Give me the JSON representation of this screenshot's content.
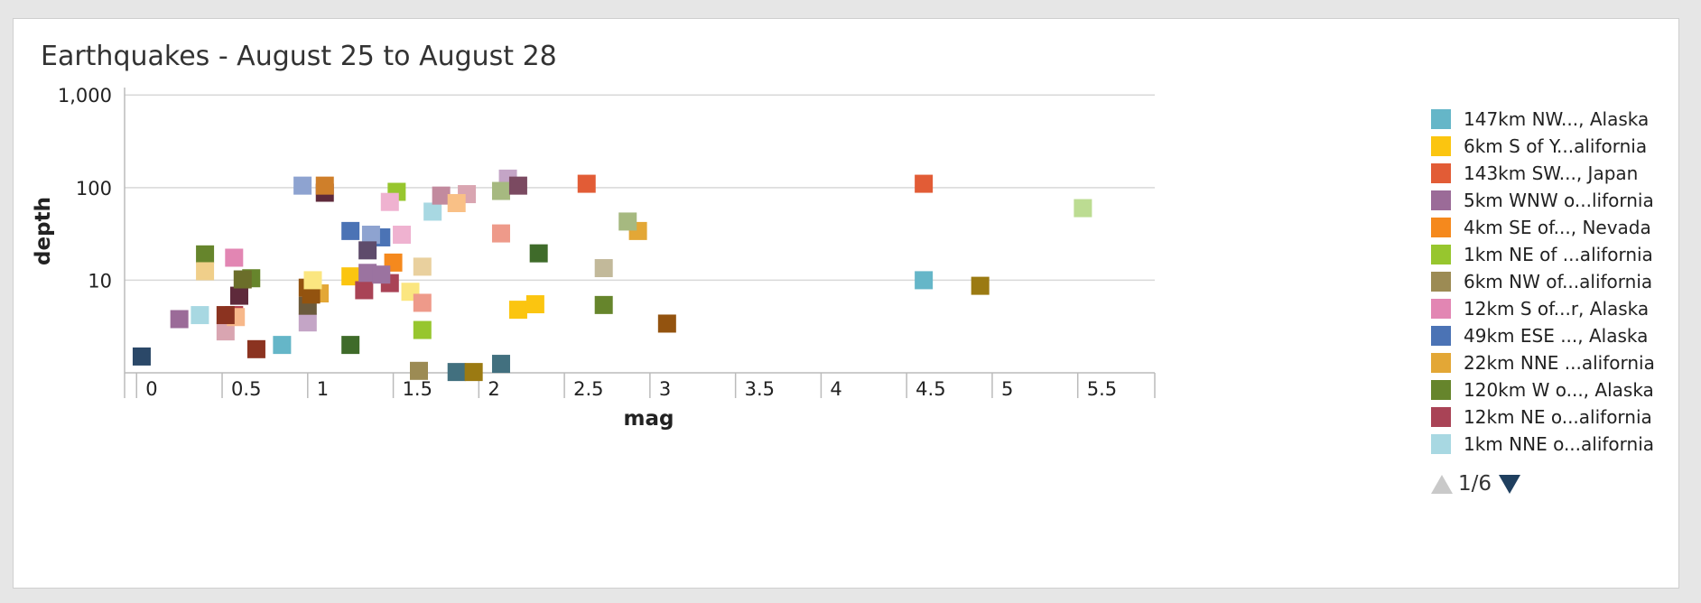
{
  "panel": {
    "title": "Earthquakes - August 25 to August 28"
  },
  "legend_pager": {
    "page": "1/6"
  },
  "chart_data": {
    "type": "scatter",
    "title": "Earthquakes - August 25 to August 28",
    "xlabel": "mag",
    "ylabel": "depth",
    "xlim": [
      -0.07,
      5.95
    ],
    "ylim": [
      1.0,
      1150
    ],
    "yscale": "log",
    "x_ticks": [
      "0",
      "0.5",
      "1",
      "1.5",
      "2",
      "2.5",
      "3",
      "3.5",
      "4",
      "4.5",
      "5",
      "5.5"
    ],
    "x_tick_values": [
      0,
      0.5,
      1,
      1.5,
      2,
      2.5,
      3,
      3.5,
      4,
      4.5,
      5,
      5.5
    ],
    "y_ticks": [
      "10",
      "100",
      "1,000"
    ],
    "y_tick_values": [
      10,
      100,
      1000
    ],
    "grid": true,
    "legend": "right",
    "series": [
      {
        "name": "147km NW..., Alaska",
        "color": "#65b6c8",
        "x": [
          0.85,
          4.6
        ],
        "y": [
          2.0,
          10.0
        ]
      },
      {
        "name": "6km S of Y...alifornia",
        "color": "#fbc510",
        "x": [
          1.25,
          2.23,
          2.33
        ],
        "y": [
          11.0,
          4.8,
          5.5
        ]
      },
      {
        "name": "143km SW..., Japan",
        "color": "#e25c36",
        "x": [
          2.63,
          4.6
        ],
        "y": [
          110,
          110
        ]
      },
      {
        "name": "5km WNW o...lifornia",
        "color": "#9b6b98",
        "x": [
          0.25
        ],
        "y": [
          3.8
        ]
      },
      {
        "name": "4km SE of..., Nevada",
        "color": "#f5891d",
        "x": [
          1.5
        ],
        "y": [
          15.5
        ]
      },
      {
        "name": "1km NE of ...alifornia",
        "color": "#97c62e",
        "x": [
          1.52,
          1.67
        ],
        "y": [
          90,
          2.9
        ]
      },
      {
        "name": "6km NW of...alifornia",
        "color": "#9c8b54",
        "x": [
          1.65
        ],
        "y": [
          1.05
        ]
      },
      {
        "name": "12km S of...r, Alaska",
        "color": "#e286b3",
        "x": [
          0.57
        ],
        "y": [
          17.5
        ]
      },
      {
        "name": "49km ESE ..., Alaska",
        "color": "#4b73b5",
        "x": [
          1.25,
          1.43
        ],
        "y": [
          34,
          29
        ]
      },
      {
        "name": "22km NNE ...alifornia",
        "color": "#e3a736",
        "x": [
          1.07,
          2.93
        ],
        "y": [
          7.2,
          34
        ]
      },
      {
        "name": "120km W o..., Alaska",
        "color": "#66852c",
        "x": [
          0.4,
          0.67,
          2.73
        ],
        "y": [
          19,
          10.5,
          5.4
        ]
      },
      {
        "name": "12km NE o...alifornia",
        "color": "#a94356",
        "x": [
          1.33,
          1.48
        ],
        "y": [
          7.8,
          9.3
        ]
      },
      {
        "name": "1km NNE o...alifornia",
        "color": "#a8d8e2",
        "x": [
          0.37,
          1.73
        ],
        "y": [
          4.2,
          55
        ]
      },
      {
        "color": "#f0cf8a",
        "x": [
          0.4
        ],
        "y": [
          12.5
        ]
      },
      {
        "color": "#2b4868",
        "x": [
          0.03
        ],
        "y": [
          1.5
        ]
      },
      {
        "color": "#b23c48",
        "x": [
          0.57
        ],
        "y": [
          4.2
        ]
      },
      {
        "color": "#d9a5b1",
        "x": [
          0.52,
          1.93
        ],
        "y": [
          2.8,
          85
        ]
      },
      {
        "color": "#5e2a3b",
        "x": [
          0.6,
          1.1
        ],
        "y": [
          6.8,
          88
        ]
      },
      {
        "color": "#f7b88a",
        "x": [
          0.58
        ],
        "y": [
          4.0
        ]
      },
      {
        "color": "#6b6e2a",
        "x": [
          0.62
        ],
        "y": [
          10.2
        ]
      },
      {
        "color": "#8b3320",
        "x": [
          0.52,
          0.7
        ],
        "y": [
          4.2,
          1.8
        ]
      },
      {
        "color": "#8ea3d0",
        "x": [
          0.97,
          1.37
        ],
        "y": [
          105,
          31
        ]
      },
      {
        "color": "#c4a5c6",
        "x": [
          1.0,
          2.17
        ],
        "y": [
          3.5,
          125
        ]
      },
      {
        "color": "#6b5a3c",
        "x": [
          1.0
        ],
        "y": [
          5.3
        ]
      },
      {
        "color": "#93530f",
        "x": [
          1.0,
          1.02,
          3.1
        ],
        "y": [
          8.3,
          7.0,
          3.4
        ]
      },
      {
        "color": "#fbe680",
        "x": [
          1.03,
          1.6
        ],
        "y": [
          10.0,
          7.5
        ]
      },
      {
        "color": "#cf7f2a",
        "x": [
          1.1
        ],
        "y": [
          105
        ]
      },
      {
        "color": "#3f6b2a",
        "x": [
          1.25,
          2.35
        ],
        "y": [
          2.0,
          19.5
        ]
      },
      {
        "color": "#5e4b6b",
        "x": [
          1.35
        ],
        "y": [
          21
        ]
      },
      {
        "color": "#9b73a0",
        "x": [
          1.35,
          1.43
        ],
        "y": [
          12.0,
          11.5
        ]
      },
      {
        "color": "#efb2d0",
        "x": [
          1.48,
          1.55
        ],
        "y": [
          70,
          31
        ]
      },
      {
        "color": "#e9d09e",
        "x": [
          1.67
        ],
        "y": [
          14.0
        ]
      },
      {
        "color": "#ee9a8a",
        "x": [
          1.67,
          2.13
        ],
        "y": [
          5.7,
          32
        ]
      },
      {
        "color": "#c28a9e",
        "x": [
          1.78
        ],
        "y": [
          82
        ]
      },
      {
        "color": "#f9c086",
        "x": [
          1.87
        ],
        "y": [
          68
        ]
      },
      {
        "color": "#42707f",
        "x": [
          1.87,
          2.13
        ],
        "y": [
          1.02,
          1.25
        ]
      },
      {
        "color": "#9b7a12",
        "x": [
          1.97,
          4.93
        ],
        "y": [
          1.02,
          8.7
        ]
      },
      {
        "color": "#a6b980",
        "x": [
          2.13,
          2.87
        ],
        "y": [
          92,
          43
        ]
      },
      {
        "color": "#7b4a61",
        "x": [
          2.23
        ],
        "y": [
          105
        ]
      },
      {
        "color": "#c2b99a",
        "x": [
          2.73
        ],
        "y": [
          13.5
        ]
      },
      {
        "color": "#bcdc92",
        "x": [
          5.53
        ],
        "y": [
          60
        ]
      }
    ]
  }
}
